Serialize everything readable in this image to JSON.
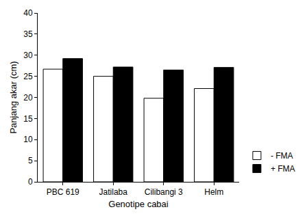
{
  "chart_data": {
    "type": "bar",
    "categories": [
      "PBC 619",
      "Jatilaba",
      "Cilibangi 3",
      "Helm"
    ],
    "series": [
      {
        "name": "- FMA",
        "color": "#ffffff",
        "values": [
          26.7,
          25.0,
          19.8,
          22.1
        ]
      },
      {
        "name": "+ FMA",
        "color": "#000000",
        "values": [
          29.2,
          27.2,
          26.5,
          27.1
        ]
      }
    ],
    "x_label": "Genotipe cabai",
    "y_label": "Panjang akar (cm)",
    "ylim": [
      0,
      40
    ],
    "yticks": [
      0,
      5,
      10,
      15,
      20,
      25,
      30,
      35,
      40
    ],
    "grid": false,
    "legend": "lower right"
  }
}
